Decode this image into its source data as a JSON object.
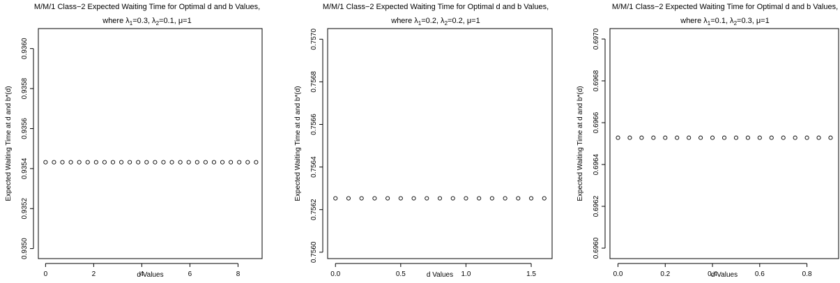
{
  "chart_data": [
    {
      "type": "scatter",
      "title_line1": "M/M/1 Class−2 Expected Waiting Time for Optimal d and b Values,",
      "title_line2": {
        "where": "where λ",
        "l1_sub": "1",
        "l1_val": "=0.3, λ",
        "l2_sub": "2",
        "l2_val": "=0.1, μ=1"
      },
      "xlabel": "d Values",
      "ylabel": "Expected Waiting Time at d and b*(d)",
      "xlim": [
        -0.3,
        9.0
      ],
      "ylim": [
        0.93495,
        0.9361
      ],
      "xticks": [
        0,
        2,
        4,
        6,
        8
      ],
      "xtick_labels": [
        "0",
        "2",
        "4",
        "6",
        "8"
      ],
      "yticks": [
        0.935,
        0.9352,
        0.9354,
        0.9356,
        0.9358,
        0.936
      ],
      "ytick_labels": [
        "0.9350",
        "0.9352",
        "0.9354",
        "0.9356",
        "0.9358",
        "0.9360"
      ],
      "x": [
        0,
        0.35,
        0.7,
        1.05,
        1.4,
        1.75,
        2.1,
        2.45,
        2.8,
        3.15,
        3.5,
        3.85,
        4.2,
        4.55,
        4.9,
        5.25,
        5.6,
        5.95,
        6.3,
        6.65,
        7.0,
        7.35,
        7.7,
        8.05,
        8.4,
        8.75
      ],
      "y_constant": 0.935432
    },
    {
      "type": "scatter",
      "title_line1": "M/M/1 Class−2 Expected Waiting Time for Optimal d and b Values,",
      "title_line2": {
        "where": "where λ",
        "l1_sub": "1",
        "l1_val": "=0.2, λ",
        "l2_sub": "2",
        "l2_val": "=0.2, μ=1"
      },
      "xlabel": "d Values",
      "ylabel": "Expected Waiting Time at d and b*(d)",
      "xlim": [
        -0.06,
        1.66
      ],
      "ylim": [
        0.75597,
        0.75705
      ],
      "xticks": [
        0.0,
        0.5,
        1.0,
        1.5
      ],
      "xtick_labels": [
        "0.0",
        "0.5",
        "1.0",
        "1.5"
      ],
      "yticks": [
        0.756,
        0.7562,
        0.7564,
        0.7566,
        0.7568,
        0.757
      ],
      "ytick_labels": [
        "0.7560",
        "0.7562",
        "0.7564",
        "0.7566",
        "0.7568",
        "0.7570"
      ],
      "x": [
        0,
        0.1,
        0.2,
        0.3,
        0.4,
        0.5,
        0.6,
        0.7,
        0.8,
        0.9,
        1.0,
        1.1,
        1.2,
        1.3,
        1.4,
        1.5,
        1.6
      ],
      "y_constant": 0.756253
    },
    {
      "type": "scatter",
      "title_line1": "M/M/1 Class−2 Expected Waiting Time for Optimal d and b Values,",
      "title_line2": {
        "where": "where λ",
        "l1_sub": "1",
        "l1_val": "=0.1, λ",
        "l2_sub": "2",
        "l2_val": "=0.3, μ=1"
      },
      "xlabel": "d Values",
      "ylabel": "Expected Waiting Time at d and b*(d)",
      "xlim": [
        -0.034,
        0.934
      ],
      "ylim": [
        0.69595,
        0.69705
      ],
      "xticks": [
        0.0,
        0.2,
        0.4,
        0.6,
        0.8
      ],
      "xtick_labels": [
        "0.0",
        "0.2",
        "0.4",
        "0.6",
        "0.8"
      ],
      "yticks": [
        0.696,
        0.6962,
        0.6964,
        0.6966,
        0.6968,
        0.697
      ],
      "ytick_labels": [
        "0.6960",
        "0.6962",
        "0.6964",
        "0.6966",
        "0.6968",
        "0.6970"
      ],
      "x": [
        0,
        0.05,
        0.1,
        0.15,
        0.2,
        0.25,
        0.3,
        0.35,
        0.4,
        0.45,
        0.5,
        0.55,
        0.6,
        0.65,
        0.7,
        0.75,
        0.8,
        0.85,
        0.9
      ],
      "y_constant": 0.696528
    }
  ]
}
